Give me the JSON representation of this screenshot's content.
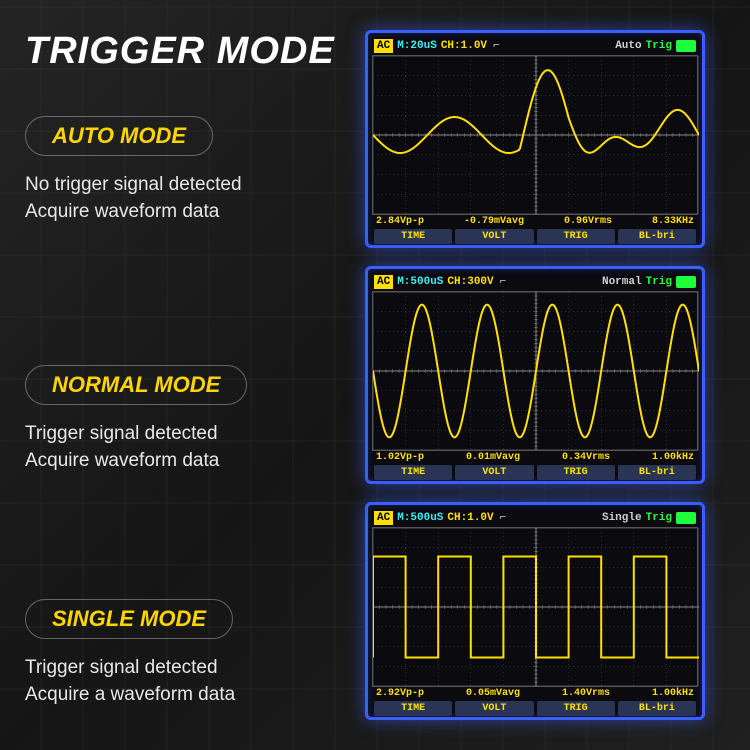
{
  "title": "TRIGGER MODE",
  "modes": [
    {
      "name": "AUTO MODE",
      "desc_l1": "No trigger signal detected",
      "desc_l2": "Acquire waveform data"
    },
    {
      "name": "NORMAL MODE",
      "desc_l1": "Trigger signal detected",
      "desc_l2": "Acquire waveform data"
    },
    {
      "name": "SINGLE MODE",
      "desc_l1": "Trigger signal detected",
      "desc_l2": "Acquire a waveform data"
    }
  ],
  "scopes": [
    {
      "hdr_time": "M:20uS",
      "hdr_ch": "CH:1.0V",
      "hdr_mode": "Auto",
      "hdr_trig": "Trig",
      "foot_vpp": "2.84Vp-p",
      "foot_vavg": "-0.79mVavg",
      "foot_vrms": "0.96Vrms",
      "foot_freq": "8.33KHz",
      "wave_type": "damped"
    },
    {
      "hdr_time": "M:500uS",
      "hdr_ch": "CH:300V",
      "hdr_mode": "Normal",
      "hdr_trig": "Trig",
      "foot_vpp": "1.02Vp-p",
      "foot_vavg": "0.01mVavg",
      "foot_vrms": "0.34Vrms",
      "foot_freq": "1.00kHz",
      "wave_type": "sine"
    },
    {
      "hdr_time": "M:500uS",
      "hdr_ch": "CH:1.0V",
      "hdr_mode": "Single",
      "hdr_trig": "Trig",
      "foot_vpp": "2.92Vp-p",
      "foot_vavg": "0.05mVavg",
      "foot_vrms": "1.40Vrms",
      "foot_freq": "1.00kHz",
      "wave_type": "square"
    }
  ],
  "foot_tabs": [
    "TIME",
    "VOLT",
    "TRIG",
    "BL-bri"
  ],
  "edge_symbol": "⌐",
  "colors": {
    "wave": "#ffe000",
    "grid": "#505050",
    "scope_border": "#3a5fff",
    "accent": "#e63946",
    "mode_title": "#ffd500",
    "cyan": "#3af0f5",
    "green": "#1eff3e"
  },
  "grid": {
    "cols": 10,
    "rows": 8
  }
}
